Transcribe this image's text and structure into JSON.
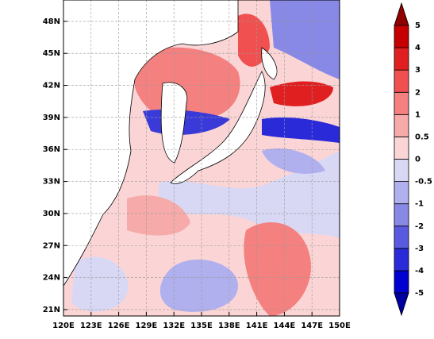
{
  "map": {
    "xlim": [
      120,
      150
    ],
    "ylim": [
      20.4,
      50
    ],
    "xticks": [
      {
        "value": 120,
        "label": "120E"
      },
      {
        "value": 123,
        "label": "123E"
      },
      {
        "value": 126,
        "label": "126E"
      },
      {
        "value": 129,
        "label": "129E"
      },
      {
        "value": 132,
        "label": "132E"
      },
      {
        "value": 135,
        "label": "135E"
      },
      {
        "value": 138,
        "label": "138E"
      },
      {
        "value": 141,
        "label": "141E"
      },
      {
        "value": 144,
        "label": "144E"
      },
      {
        "value": 147,
        "label": "147E"
      },
      {
        "value": 150,
        "label": "150E"
      }
    ],
    "yticks": [
      {
        "value": 21,
        "label": "21N"
      },
      {
        "value": 24,
        "label": "24N"
      },
      {
        "value": 27,
        "label": "27N"
      },
      {
        "value": 30,
        "label": "30N"
      },
      {
        "value": 33,
        "label": "33N"
      },
      {
        "value": 36,
        "label": "36N"
      },
      {
        "value": 39,
        "label": "39N"
      },
      {
        "value": 42,
        "label": "42N"
      },
      {
        "value": 45,
        "label": "45N"
      },
      {
        "value": 48,
        "label": "48N"
      }
    ],
    "grid": true
  },
  "colorbar": {
    "levels": [
      -5,
      -4,
      -3,
      -2,
      -1,
      -0.5,
      0,
      0.5,
      1,
      2,
      3,
      4,
      5
    ],
    "colors": [
      "#0000a0",
      "#0000d0",
      "#2a2ad8",
      "#5a5ae0",
      "#8888e6",
      "#b0b0ee",
      "#d8d8f5",
      "#fbd5d5",
      "#f6aaaa",
      "#f48080",
      "#f05050",
      "#e02020",
      "#c40000",
      "#900000"
    ]
  }
}
